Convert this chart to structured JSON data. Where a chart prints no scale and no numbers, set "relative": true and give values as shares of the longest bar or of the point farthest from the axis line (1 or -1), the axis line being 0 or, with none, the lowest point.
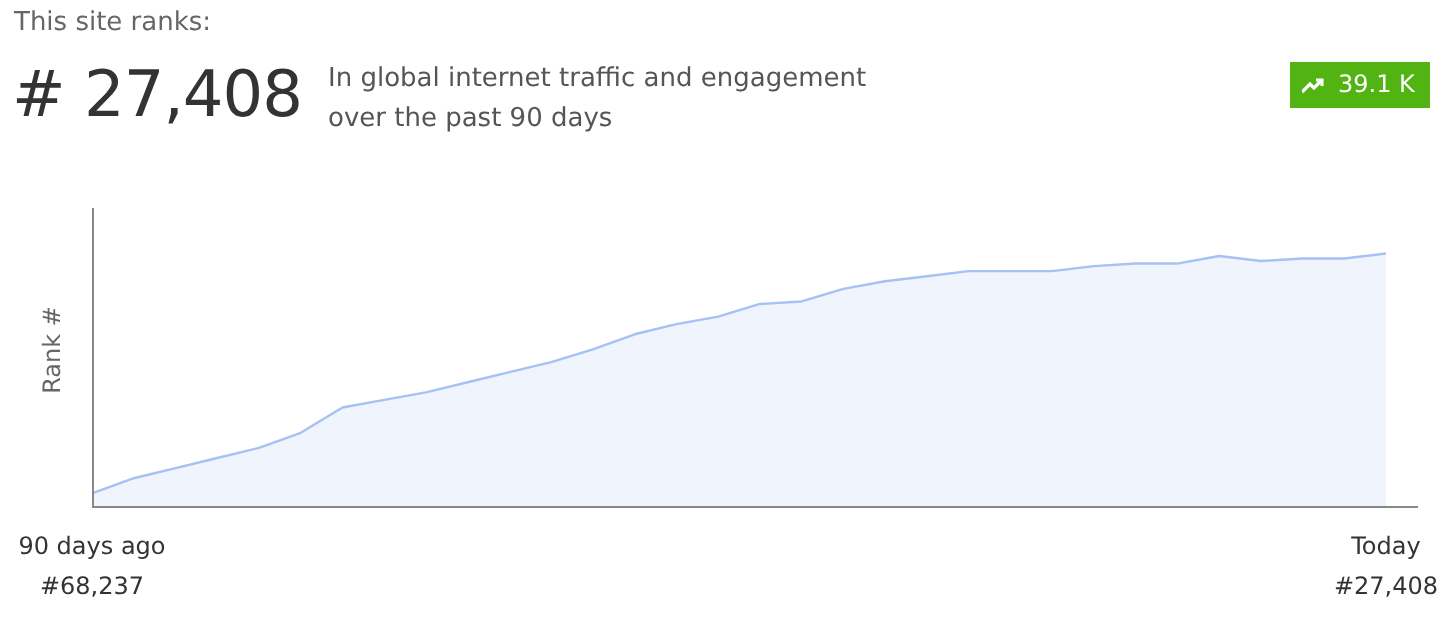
{
  "chart_data": {
    "type": "area",
    "title": "This site ranks:",
    "subtitle": "In global internet traffic and engagement over the past 90 days",
    "ylabel": "Rank #",
    "categories": [
      "90 days ago",
      null,
      null,
      null,
      null,
      null,
      null,
      null,
      null,
      null,
      null,
      null,
      null,
      null,
      null,
      null,
      null,
      null,
      null,
      null,
      null,
      null,
      null,
      null,
      null,
      null,
      null,
      null,
      null,
      null,
      null,
      "Today"
    ],
    "relative": true,
    "color": "#a5c1f5",
    "values": [
      0.05,
      0.11,
      0.15,
      0.19,
      0.23,
      0.29,
      0.39,
      0.42,
      0.45,
      0.49,
      0.53,
      0.57,
      0.62,
      0.68,
      0.72,
      0.75,
      0.8,
      0.81,
      0.86,
      0.89,
      0.91,
      0.93,
      0.93,
      0.93,
      0.95,
      0.96,
      0.96,
      0.99,
      0.97,
      0.98,
      0.98,
      1
    ],
    "annotations": [
      "# 27,408",
      "39.1 K",
      "#68,237",
      "#27,408"
    ],
    "legend": false
  }
}
